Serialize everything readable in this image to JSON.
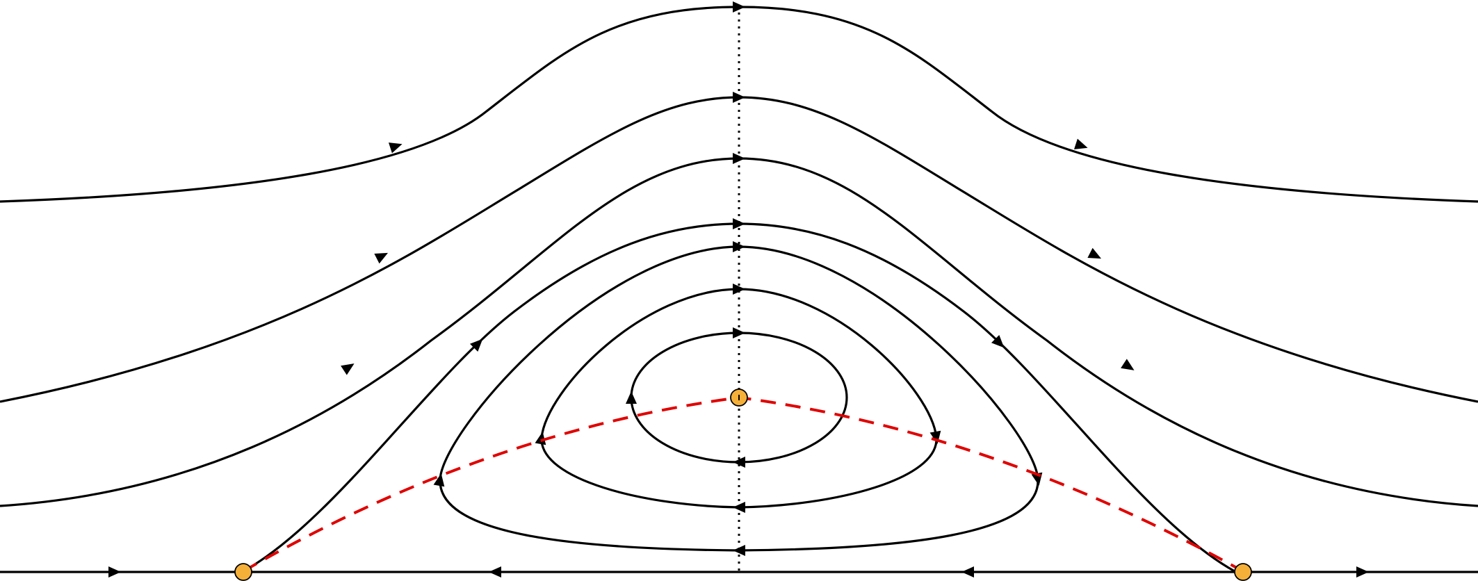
{
  "colors": {
    "background": "#ffffff",
    "streamline": "#000000",
    "separatrix": "#e00000",
    "fixed_point": "#f5b03a"
  },
  "legend": []
}
